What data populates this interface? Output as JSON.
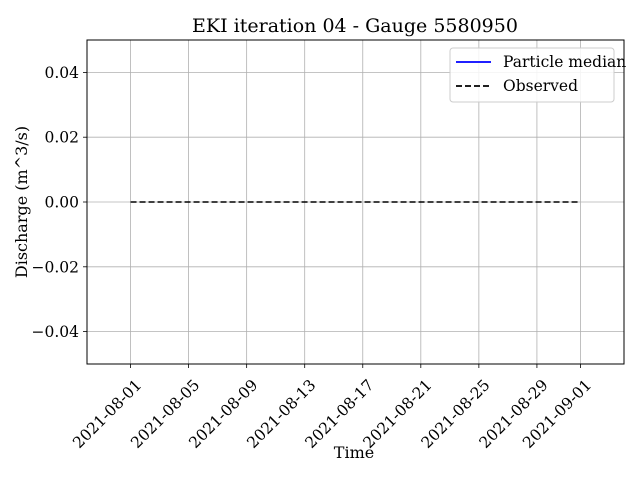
{
  "chart_data": {
    "type": "line",
    "title": "EKI iteration 04 - Gauge 5580950",
    "xlabel": "Time",
    "ylabel": "Discharge (m^3/s)",
    "x_range": [
      "2021-07-29",
      "2021-09-04"
    ],
    "ylim": [
      -0.05,
      0.05
    ],
    "x_ticks": [
      "2021-08-01",
      "2021-08-05",
      "2021-08-09",
      "2021-08-13",
      "2021-08-17",
      "2021-08-21",
      "2021-08-25",
      "2021-08-29",
      "2021-09-01"
    ],
    "y_ticks": [
      -0.04,
      -0.02,
      0.0,
      0.02,
      0.04
    ],
    "y_tick_labels": [
      "−0.04",
      "−0.02",
      "0.00",
      "0.02",
      "0.04"
    ],
    "grid": true,
    "legend_position": "top-right",
    "series": [
      {
        "name": "Particle median",
        "color": "#0000ff",
        "style": "solid",
        "x": [],
        "y": []
      },
      {
        "name": "Observed",
        "color": "#000000",
        "style": "dashed",
        "x": [
          "2021-08-01",
          "2021-09-01"
        ],
        "y": [
          0.0,
          0.0
        ]
      }
    ]
  }
}
